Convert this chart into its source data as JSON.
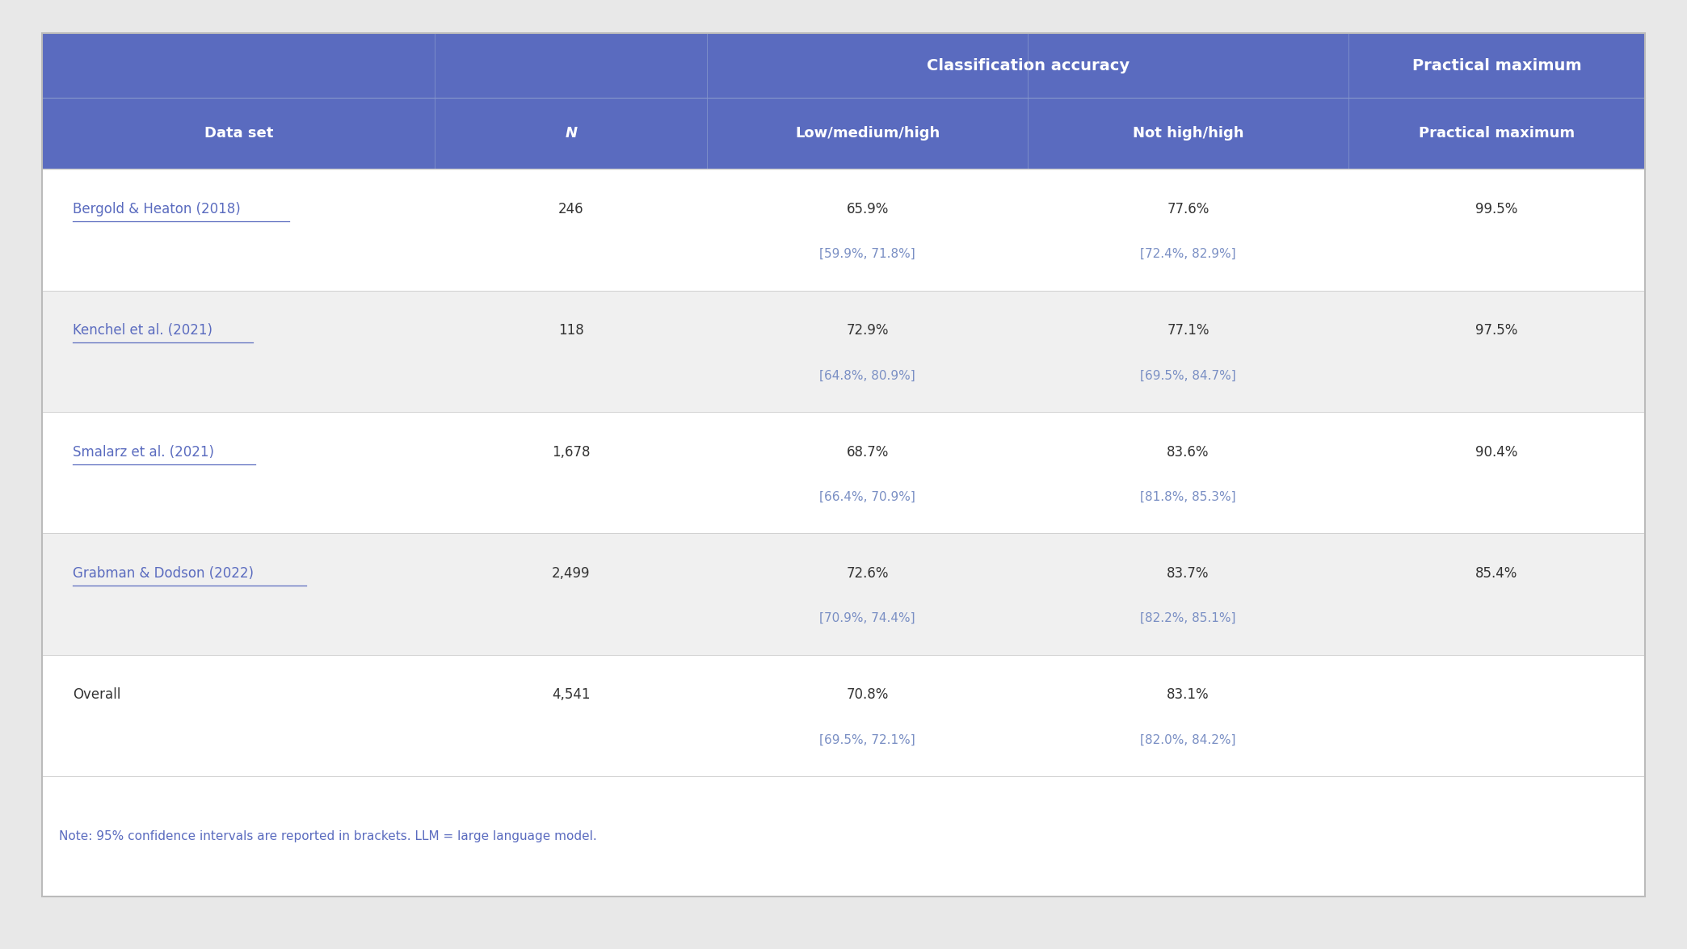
{
  "header_bg_color": "#5a6bbf",
  "header_text_color": "#ffffff",
  "row_bg_colors": [
    "#ffffff",
    "#f0f0f0"
  ],
  "text_color_dark": "#333333",
  "text_color_link": "#5a6bbf",
  "text_color_ci": "#7a8fc4",
  "note_text_color": "#5a6bbf",
  "outer_bg": "#e8e8e8",
  "table_bg": "#ffffff",
  "border_color": "#cccccc",
  "col1_header": "Data set",
  "col2_header": "N",
  "col3_header": "Low/medium/high",
  "col4_header": "Not high/high",
  "col5_header": "Practical maximum",
  "superheader1": "Classification accuracy",
  "superheader2": "Practical maximum",
  "rows": [
    {
      "dataset": "Bergold & Heaton (2018)",
      "n": "246",
      "lmh": "65.9%",
      "lmh_ci": "[59.9%, 71.8%]",
      "nhh": "77.6%",
      "nhh_ci": "[72.4%, 82.9%]",
      "pm": "99.5%",
      "underline": true
    },
    {
      "dataset": "Kenchel et al. (2021)",
      "n": "118",
      "lmh": "72.9%",
      "lmh_ci": "[64.8%, 80.9%]",
      "nhh": "77.1%",
      "nhh_ci": "[69.5%, 84.7%]",
      "pm": "97.5%",
      "underline": true
    },
    {
      "dataset": "Smalarz et al. (2021)",
      "n": "1,678",
      "lmh": "68.7%",
      "lmh_ci": "[66.4%, 70.9%]",
      "nhh": "83.6%",
      "nhh_ci": "[81.8%, 85.3%]",
      "pm": "90.4%",
      "underline": true
    },
    {
      "dataset": "Grabman & Dodson (2022)",
      "n": "2,499",
      "lmh": "72.6%",
      "lmh_ci": "[70.9%, 74.4%]",
      "nhh": "83.7%",
      "nhh_ci": "[82.2%, 85.1%]",
      "pm": "85.4%",
      "underline": true
    },
    {
      "dataset": "Overall",
      "n": "4,541",
      "lmh": "70.8%",
      "lmh_ci": "[69.5%, 72.1%]",
      "nhh": "83.1%",
      "nhh_ci": "[82.0%, 84.2%]",
      "pm": "",
      "underline": false
    }
  ],
  "note": "Note: 95% confidence intervals are reported in brackets. LLM = large language model.",
  "figsize": [
    20.88,
    11.75
  ],
  "dpi": 100
}
